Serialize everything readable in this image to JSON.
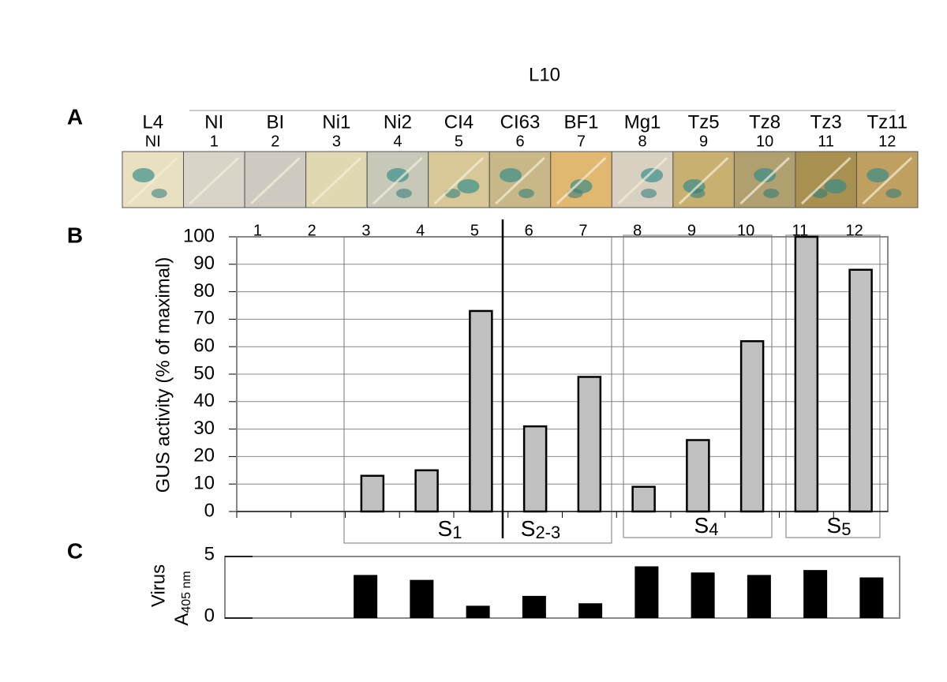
{
  "panel_labels": [
    "A",
    "B",
    "C"
  ],
  "photo_strip": {
    "group_label": "L10",
    "columns": [
      {
        "top": "L4",
        "bottom": "NI"
      },
      {
        "top": "NI",
        "bottom": "1"
      },
      {
        "top": "BI",
        "bottom": "2"
      },
      {
        "top": "Ni1",
        "bottom": "3"
      },
      {
        "top": "Ni2",
        "bottom": "4"
      },
      {
        "top": "CI4",
        "bottom": "5"
      },
      {
        "top": "CI63",
        "bottom": "6"
      },
      {
        "top": "BF1",
        "bottom": "7"
      },
      {
        "top": "Mg1",
        "bottom": "8"
      },
      {
        "top": "Tz5",
        "bottom": "9"
      },
      {
        "top": "Tz8",
        "bottom": "10"
      },
      {
        "top": "Tz3",
        "bottom": "11"
      },
      {
        "top": "Tz11",
        "bottom": "12"
      }
    ]
  },
  "chart_data": [
    {
      "type": "bar",
      "y_label": "GUS activity (% of maximal)",
      "categories": [
        "1",
        "2",
        "3",
        "4",
        "5",
        "6",
        "7",
        "8",
        "9",
        "10",
        "11",
        "12"
      ],
      "values": [
        0,
        0,
        13,
        15,
        73,
        31,
        49,
        9,
        26,
        62,
        100,
        88
      ],
      "color": "#c0c0c0",
      "ylim": [
        0,
        100
      ],
      "yticks": [
        0,
        10,
        20,
        30,
        40,
        50,
        60,
        70,
        80,
        90,
        100
      ],
      "grid": true,
      "groups": [
        {
          "label": "S",
          "sub": "1"
        },
        {
          "label": "S",
          "sub": "2-3"
        },
        {
          "label": "S",
          "sub": "4"
        },
        {
          "label": "S",
          "sub": "5"
        }
      ]
    },
    {
      "type": "bar",
      "y_label": "Virus",
      "y_label2": "A",
      "y_label2_sub": "405 nm",
      "values": [
        0,
        0,
        3.5,
        3.1,
        1.0,
        1.8,
        1.2,
        4.2,
        3.7,
        3.5,
        3.9,
        3.3
      ],
      "color": "#000000",
      "ylim": [
        0,
        5
      ],
      "yticks": [
        0,
        5
      ],
      "grid": false
    }
  ]
}
